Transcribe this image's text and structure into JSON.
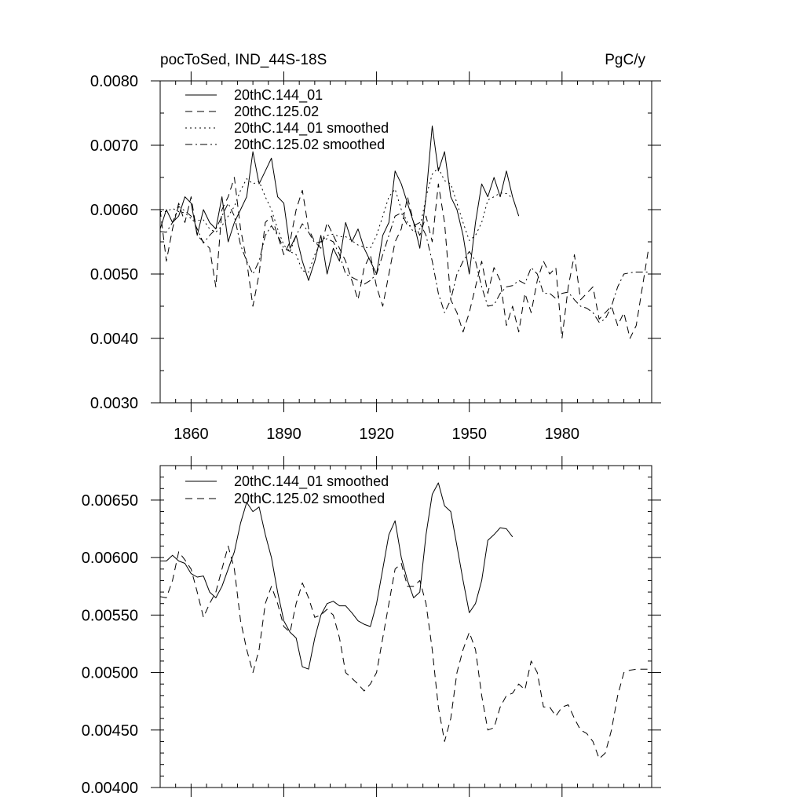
{
  "chart_data": [
    {
      "type": "line",
      "title_left": "pocToSed, IND_44S-18S",
      "title_right": "PgC/y",
      "xlabel": "",
      "ylabel": "",
      "xlim": [
        1850,
        2009
      ],
      "ylim": [
        0.003,
        0.008
      ],
      "xticks": [
        1860,
        1890,
        1920,
        1950,
        1980
      ],
      "xtick_labels": [
        "1860",
        "1890",
        "1920",
        "1950",
        "1980"
      ],
      "yticks": [
        0.003,
        0.004,
        0.005,
        0.006,
        0.007,
        0.008
      ],
      "ytick_labels": [
        "0.0030",
        "0.0040",
        "0.0050",
        "0.0060",
        "0.0070",
        "0.0080"
      ],
      "grid": false,
      "legend_position": "top-left",
      "series": [
        {
          "name": "20thC.144_01",
          "style": "solid",
          "x": [
            1850,
            1852,
            1854,
            1856,
            1858,
            1860,
            1862,
            1864,
            1866,
            1868,
            1870,
            1872,
            1874,
            1876,
            1878,
            1880,
            1882,
            1884,
            1886,
            1888,
            1890,
            1892,
            1894,
            1896,
            1898,
            1900,
            1902,
            1904,
            1906,
            1908,
            1910,
            1912,
            1914,
            1916,
            1918,
            1920,
            1922,
            1924,
            1926,
            1928,
            1930,
            1932,
            1934,
            1936,
            1938,
            1940,
            1942,
            1944,
            1946,
            1948,
            1950,
            1952,
            1954,
            1956,
            1958,
            1960,
            1962,
            1964,
            1966
          ],
          "values": [
            0.0057,
            0.006,
            0.0058,
            0.0059,
            0.0062,
            0.0061,
            0.0056,
            0.006,
            0.0058,
            0.0057,
            0.0062,
            0.0055,
            0.0058,
            0.006,
            0.0062,
            0.0069,
            0.0064,
            0.0066,
            0.0068,
            0.0062,
            0.0061,
            0.0054,
            0.0056,
            0.0052,
            0.0049,
            0.0052,
            0.0056,
            0.005,
            0.0054,
            0.0052,
            0.0058,
            0.0055,
            0.0057,
            0.0054,
            0.0052,
            0.005,
            0.0056,
            0.0058,
            0.0066,
            0.0064,
            0.0061,
            0.0058,
            0.0054,
            0.0062,
            0.0073,
            0.0066,
            0.0069,
            0.0062,
            0.006,
            0.0056,
            0.005,
            0.0058,
            0.0064,
            0.0062,
            0.0065,
            0.0062,
            0.0066,
            0.0062,
            0.0059
          ]
        },
        {
          "name": "20thC.125.02",
          "style": "dashed",
          "x": [
            1850,
            1852,
            1854,
            1856,
            1858,
            1860,
            1862,
            1864,
            1866,
            1868,
            1870,
            1872,
            1874,
            1876,
            1878,
            1880,
            1882,
            1884,
            1886,
            1888,
            1890,
            1892,
            1894,
            1896,
            1898,
            1900,
            1902,
            1904,
            1906,
            1908,
            1910,
            1912,
            1914,
            1916,
            1918,
            1920,
            1922,
            1924,
            1926,
            1928,
            1930,
            1932,
            1934,
            1936,
            1938,
            1940,
            1942,
            1944,
            1946,
            1948,
            1950,
            1952,
            1954,
            1956,
            1958,
            1960,
            1962,
            1964,
            1966,
            1968,
            1970,
            1972,
            1974,
            1976,
            1978,
            1980,
            1982,
            1984,
            1986,
            1988,
            1990,
            1992,
            1994,
            1996,
            1998,
            2000,
            2002,
            2004,
            2006,
            2008
          ],
          "values": [
            0.006,
            0.0052,
            0.0057,
            0.0061,
            0.0058,
            0.0062,
            0.0056,
            0.0055,
            0.0054,
            0.0048,
            0.006,
            0.0062,
            0.0065,
            0.0057,
            0.0052,
            0.0045,
            0.005,
            0.0058,
            0.0059,
            0.0056,
            0.0053,
            0.0055,
            0.006,
            0.0063,
            0.0057,
            0.0055,
            0.0054,
            0.0058,
            0.0056,
            0.0054,
            0.0052,
            0.0049,
            0.0046,
            0.0051,
            0.0053,
            0.0048,
            0.0045,
            0.005,
            0.0055,
            0.0057,
            0.0062,
            0.0058,
            0.0056,
            0.0059,
            0.0055,
            0.0064,
            0.0058,
            0.0046,
            0.0044,
            0.0041,
            0.0044,
            0.0048,
            0.0052,
            0.0047,
            0.0051,
            0.0049,
            0.0042,
            0.0045,
            0.0041,
            0.0047,
            0.0044,
            0.0049,
            0.0052,
            0.005,
            0.0051,
            0.004,
            0.0048,
            0.0053,
            0.0046,
            0.0047,
            0.0048,
            0.0043,
            0.0044,
            0.0045,
            0.0042,
            0.0044,
            0.004,
            0.0042,
            0.0048,
            0.0054
          ]
        },
        {
          "name": "20thC.144_01 smoothed",
          "style": "dotted",
          "x": [
            1850,
            1852,
            1854,
            1856,
            1858,
            1860,
            1862,
            1864,
            1866,
            1868,
            1870,
            1872,
            1874,
            1876,
            1878,
            1880,
            1882,
            1884,
            1886,
            1888,
            1890,
            1892,
            1894,
            1896,
            1898,
            1900,
            1902,
            1904,
            1906,
            1908,
            1910,
            1912,
            1914,
            1916,
            1918,
            1920,
            1922,
            1924,
            1926,
            1928,
            1930,
            1932,
            1934,
            1936,
            1938,
            1940,
            1942,
            1944,
            1946,
            1948,
            1950,
            1952,
            1954,
            1956,
            1958,
            1960,
            1962,
            1964
          ],
          "values": [
            0.00597,
            0.00597,
            0.00602,
            0.00597,
            0.00595,
            0.00586,
            0.00583,
            0.00584,
            0.0057,
            0.00565,
            0.00575,
            0.0059,
            0.00605,
            0.0063,
            0.00648,
            0.0064,
            0.00644,
            0.0062,
            0.006,
            0.0057,
            0.00545,
            0.00535,
            0.0053,
            0.00505,
            0.00503,
            0.0053,
            0.0055,
            0.0056,
            0.00562,
            0.00558,
            0.00558,
            0.00552,
            0.00545,
            0.00542,
            0.0054,
            0.0056,
            0.0059,
            0.0062,
            0.00632,
            0.006,
            0.0058,
            0.00565,
            0.0057,
            0.0062,
            0.00655,
            0.00665,
            0.00645,
            0.0064,
            0.0061,
            0.0058,
            0.00552,
            0.0056,
            0.0058,
            0.00615,
            0.0062,
            0.00626,
            0.00625,
            0.00618
          ]
        },
        {
          "name": "20thC.125.02 smoothed",
          "style": "dashdot",
          "x": [
            1850,
            1852,
            1854,
            1856,
            1858,
            1860,
            1862,
            1864,
            1866,
            1868,
            1870,
            1872,
            1874,
            1876,
            1878,
            1880,
            1882,
            1884,
            1886,
            1888,
            1890,
            1892,
            1894,
            1896,
            1898,
            1900,
            1902,
            1904,
            1906,
            1908,
            1910,
            1912,
            1914,
            1916,
            1918,
            1920,
            1922,
            1924,
            1926,
            1928,
            1930,
            1932,
            1934,
            1936,
            1938,
            1940,
            1942,
            1944,
            1946,
            1948,
            1950,
            1952,
            1954,
            1956,
            1958,
            1960,
            1962,
            1964,
            1966,
            1968,
            1970,
            1972,
            1974,
            1976,
            1978,
            1980,
            1982,
            1984,
            1986,
            1988,
            1990,
            1992,
            1994,
            1996,
            1998,
            2000,
            2002,
            2004,
            2006,
            2008
          ],
          "values": [
            0.00566,
            0.00565,
            0.0058,
            0.00605,
            0.00598,
            0.0059,
            0.0057,
            0.00548,
            0.0056,
            0.0057,
            0.0059,
            0.0061,
            0.0059,
            0.00545,
            0.0052,
            0.005,
            0.0052,
            0.0056,
            0.00575,
            0.0056,
            0.0054,
            0.00535,
            0.0056,
            0.00578,
            0.00565,
            0.00548,
            0.0055,
            0.00555,
            0.0055,
            0.0053,
            0.005,
            0.00495,
            0.0049,
            0.00484,
            0.0049,
            0.005,
            0.0053,
            0.0056,
            0.0059,
            0.00595,
            0.00575,
            0.00575,
            0.0058,
            0.0056,
            0.0052,
            0.0047,
            0.0044,
            0.0046,
            0.005,
            0.0052,
            0.00535,
            0.0052,
            0.0048,
            0.0045,
            0.00452,
            0.0047,
            0.0048,
            0.00482,
            0.0049,
            0.00485,
            0.0051,
            0.005,
            0.0047,
            0.0047,
            0.00462,
            0.0047,
            0.00472,
            0.0046,
            0.0045,
            0.00447,
            0.0044,
            0.00425,
            0.0043,
            0.0045,
            0.0048,
            0.005,
            0.00502,
            0.00503,
            0.00503,
            0.00503
          ]
        }
      ]
    },
    {
      "type": "line",
      "xlabel": "",
      "ylabel": "",
      "xlim": [
        1850,
        2009
      ],
      "ylim": [
        0.004,
        0.0068
      ],
      "xticks": [
        1860,
        1890,
        1920,
        1950,
        1980
      ],
      "xtick_labels": [],
      "yticks": [
        0.004,
        0.0045,
        0.005,
        0.0055,
        0.006,
        0.0065
      ],
      "ytick_labels": [
        "0.00400",
        "0.00450",
        "0.00500",
        "0.00550",
        "0.00600",
        "0.00650"
      ],
      "grid": false,
      "legend_position": "top-left",
      "series": [
        {
          "name": "20thC.144_01 smoothed",
          "style": "solid",
          "x": [
            1850,
            1852,
            1854,
            1856,
            1858,
            1860,
            1862,
            1864,
            1866,
            1868,
            1870,
            1872,
            1874,
            1876,
            1878,
            1880,
            1882,
            1884,
            1886,
            1888,
            1890,
            1892,
            1894,
            1896,
            1898,
            1900,
            1902,
            1904,
            1906,
            1908,
            1910,
            1912,
            1914,
            1916,
            1918,
            1920,
            1922,
            1924,
            1926,
            1928,
            1930,
            1932,
            1934,
            1936,
            1938,
            1940,
            1942,
            1944,
            1946,
            1948,
            1950,
            1952,
            1954,
            1956,
            1958,
            1960,
            1962,
            1964
          ],
          "values": [
            0.00597,
            0.00597,
            0.00602,
            0.00597,
            0.00595,
            0.00586,
            0.00583,
            0.00584,
            0.0057,
            0.00565,
            0.00575,
            0.0059,
            0.00605,
            0.0063,
            0.00648,
            0.0064,
            0.00644,
            0.0062,
            0.006,
            0.0057,
            0.00545,
            0.00535,
            0.0053,
            0.00505,
            0.00503,
            0.0053,
            0.0055,
            0.0056,
            0.00562,
            0.00558,
            0.00558,
            0.00552,
            0.00545,
            0.00542,
            0.0054,
            0.0056,
            0.0059,
            0.0062,
            0.00632,
            0.006,
            0.0058,
            0.00565,
            0.0057,
            0.0062,
            0.00655,
            0.00665,
            0.00645,
            0.0064,
            0.0061,
            0.0058,
            0.00552,
            0.0056,
            0.0058,
            0.00615,
            0.0062,
            0.00626,
            0.00625,
            0.00618
          ]
        },
        {
          "name": "20thC.125.02 smoothed",
          "style": "dashed",
          "x": [
            1850,
            1852,
            1854,
            1856,
            1858,
            1860,
            1862,
            1864,
            1866,
            1868,
            1870,
            1872,
            1874,
            1876,
            1878,
            1880,
            1882,
            1884,
            1886,
            1888,
            1890,
            1892,
            1894,
            1896,
            1898,
            1900,
            1902,
            1904,
            1906,
            1908,
            1910,
            1912,
            1914,
            1916,
            1918,
            1920,
            1922,
            1924,
            1926,
            1928,
            1930,
            1932,
            1934,
            1936,
            1938,
            1940,
            1942,
            1944,
            1946,
            1948,
            1950,
            1952,
            1954,
            1956,
            1958,
            1960,
            1962,
            1964,
            1966,
            1968,
            1970,
            1972,
            1974,
            1976,
            1978,
            1980,
            1982,
            1984,
            1986,
            1988,
            1990,
            1992,
            1994,
            1996,
            1998,
            2000,
            2002,
            2004,
            2006,
            2008
          ],
          "values": [
            0.00566,
            0.00565,
            0.0058,
            0.00605,
            0.00598,
            0.0059,
            0.0057,
            0.00548,
            0.0056,
            0.0057,
            0.0059,
            0.0061,
            0.0059,
            0.00545,
            0.0052,
            0.005,
            0.0052,
            0.0056,
            0.00575,
            0.0056,
            0.0054,
            0.00535,
            0.0056,
            0.00578,
            0.00565,
            0.00548,
            0.0055,
            0.00555,
            0.0055,
            0.0053,
            0.005,
            0.00495,
            0.0049,
            0.00484,
            0.0049,
            0.005,
            0.0053,
            0.0056,
            0.0059,
            0.00595,
            0.00575,
            0.00575,
            0.0058,
            0.0056,
            0.0052,
            0.0047,
            0.0044,
            0.0046,
            0.005,
            0.0052,
            0.00535,
            0.0052,
            0.0048,
            0.0045,
            0.00452,
            0.0047,
            0.0048,
            0.00482,
            0.0049,
            0.00485,
            0.0051,
            0.005,
            0.0047,
            0.0047,
            0.00462,
            0.0047,
            0.00472,
            0.0046,
            0.0045,
            0.00447,
            0.0044,
            0.00425,
            0.0043,
            0.0045,
            0.0048,
            0.005,
            0.00502,
            0.00503,
            0.00503,
            0.00503
          ]
        }
      ]
    }
  ]
}
